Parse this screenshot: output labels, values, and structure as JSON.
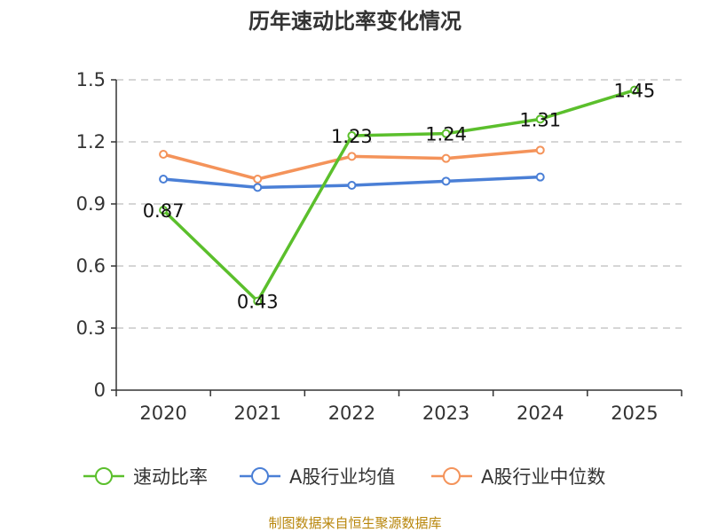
{
  "chart_data": {
    "type": "line",
    "title": "历年速动比率变化情况",
    "categories": [
      "2020",
      "2021",
      "2022",
      "2023",
      "2024",
      "2025"
    ],
    "y_ticks": [
      "0",
      "0.3",
      "0.6",
      "0.9",
      "1.2",
      "1.5"
    ],
    "ylim": [
      0,
      1.5
    ],
    "grid": true,
    "series": [
      {
        "name": "速动比率",
        "color": "#5bbf2c",
        "values": [
          0.87,
          0.43,
          1.23,
          1.24,
          1.31,
          1.45
        ],
        "labels": [
          "0.87",
          "0.43",
          "1.23",
          "1.24",
          "1.31",
          "1.45"
        ]
      },
      {
        "name": "A股行业均值",
        "color": "#4a7fd6",
        "values": [
          1.02,
          0.98,
          0.99,
          1.01,
          1.03,
          null
        ]
      },
      {
        "name": "A股行业中位数",
        "color": "#f4935a",
        "values": [
          1.14,
          1.02,
          1.13,
          1.12,
          1.16,
          null
        ]
      }
    ],
    "legend_position": "bottom",
    "source": "制图数据来自恒生聚源数据库"
  }
}
